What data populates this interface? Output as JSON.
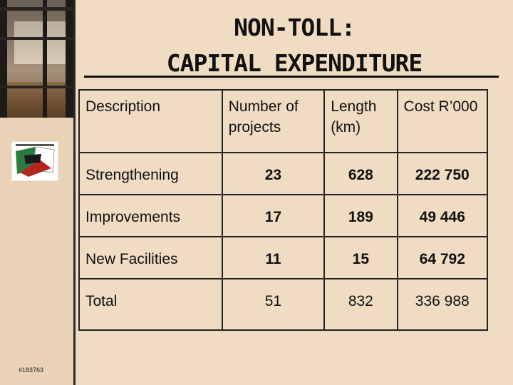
{
  "slide": {
    "title_line1": "NON-TOLL:",
    "title_line2": "CAPITAL EXPENDITURE",
    "footer_code": "#183763"
  },
  "table": {
    "headers": {
      "description": "Description",
      "projects": "Number of projects",
      "length": "Length (km)",
      "cost": "Cost R’000"
    },
    "rows": [
      {
        "description": "Strengthening",
        "projects": "23",
        "length": "628",
        "cost": "222 750"
      },
      {
        "description": "Improvements",
        "projects": "17",
        "length": "189",
        "cost": "49 446"
      },
      {
        "description": "New Facilities",
        "projects": "11",
        "length": "15",
        "cost": "64 792"
      },
      {
        "description": "Total",
        "projects": "51",
        "length": "832",
        "cost": "336 988"
      }
    ]
  },
  "colors": {
    "background": "#f0dcc3",
    "text": "#111111",
    "border": "#222222"
  }
}
